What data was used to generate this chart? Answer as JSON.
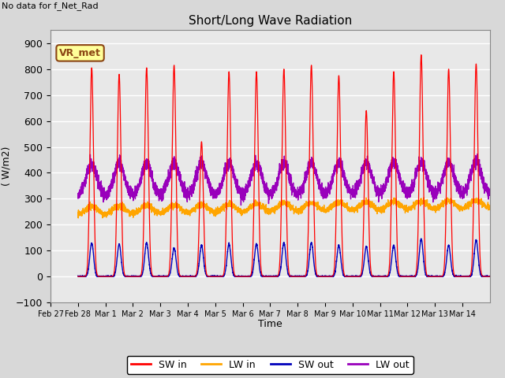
{
  "title": "Short/Long Wave Radiation",
  "ylabel": "( W/m2)",
  "xlabel": "Time",
  "ylim": [
    -100,
    950
  ],
  "background_color": "#e8e8e8",
  "grid_color": "#ffffff",
  "text_no_data": "No data for f_Net_Rad",
  "legend_label_box": "VR_met",
  "colors": {
    "SW_in": "#ff0000",
    "LW_in": "#ffa500",
    "SW_out": "#0000bb",
    "LW_out": "#9900bb"
  },
  "legend_labels": [
    "SW in",
    "LW in",
    "SW out",
    "LW out"
  ],
  "xtick_labels": [
    "Feb 27",
    "Feb 28",
    "Mar 1",
    "Mar 2",
    "Mar 3",
    "Mar 4",
    "Mar 5",
    "Mar 6",
    "Mar 7",
    "Mar 8",
    "Mar 9",
    "Mar 10",
    "Mar 11",
    "Mar 12",
    "Mar 13",
    "Mar 14"
  ],
  "sw_in_peaks": [
    805,
    780,
    805,
    815,
    520,
    790,
    790,
    800,
    815,
    775,
    640,
    790,
    855,
    800,
    820
  ],
  "sw_out_peaks": [
    130,
    125,
    130,
    110,
    120,
    125,
    125,
    130,
    130,
    120,
    115,
    120,
    145,
    120,
    140
  ],
  "lw_in_base": 255,
  "lw_out_base": 315,
  "lw_out_peak": 435,
  "time_resolution": 288
}
